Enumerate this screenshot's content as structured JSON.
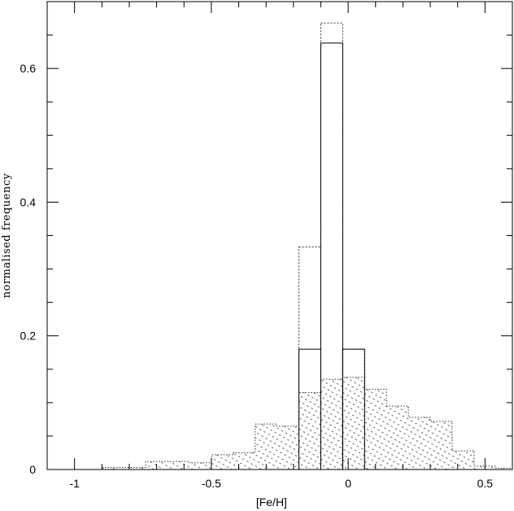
{
  "chart_data": {
    "type": "bar",
    "title": "",
    "xlabel": "[Fe/H]",
    "ylabel": "normalised frequency",
    "xlim": [
      -1.1,
      0.6
    ],
    "ylim": [
      0,
      0.7
    ],
    "grid": false,
    "x_ticks": [
      {
        "value": -1,
        "label": "-1"
      },
      {
        "value": -0.5,
        "label": "-0.5"
      },
      {
        "value": 0,
        "label": "0"
      },
      {
        "value": 0.5,
        "label": "0.5"
      }
    ],
    "y_ticks": [
      {
        "value": 0,
        "label": "0"
      },
      {
        "value": 0.2,
        "label": "0.2"
      },
      {
        "value": 0.4,
        "label": "0.4"
      },
      {
        "value": 0.6,
        "label": "0.6"
      }
    ],
    "series": [
      {
        "style": "solid-outline",
        "bin_edges": [
          -0.18,
          -0.1,
          -0.02,
          0.06
        ],
        "values": [
          0.18,
          0.638,
          0.18
        ]
      },
      {
        "style": "dotted-outline",
        "bin_edges": [
          -0.18,
          -0.1,
          -0.02,
          0.06
        ],
        "values": [
          0.333,
          0.668,
          0.18
        ]
      },
      {
        "style": "dotted-fill",
        "bin_edges": [
          -1.1,
          -0.9,
          -0.74,
          -0.58,
          -0.5,
          -0.42,
          -0.34,
          -0.26,
          -0.18,
          -0.1,
          -0.02,
          0.06,
          0.14,
          0.22,
          0.3,
          0.38,
          0.46,
          0.54,
          0.6
        ],
        "values": [
          0.0,
          0.003,
          0.012,
          0.01,
          0.022,
          0.025,
          0.068,
          0.065,
          0.115,
          0.135,
          0.138,
          0.12,
          0.095,
          0.078,
          0.072,
          0.028,
          0.005,
          0.002
        ]
      }
    ]
  },
  "colors": {
    "axis": "#000000",
    "fill_dots": "#555555",
    "dotted_outline": "#333333"
  }
}
